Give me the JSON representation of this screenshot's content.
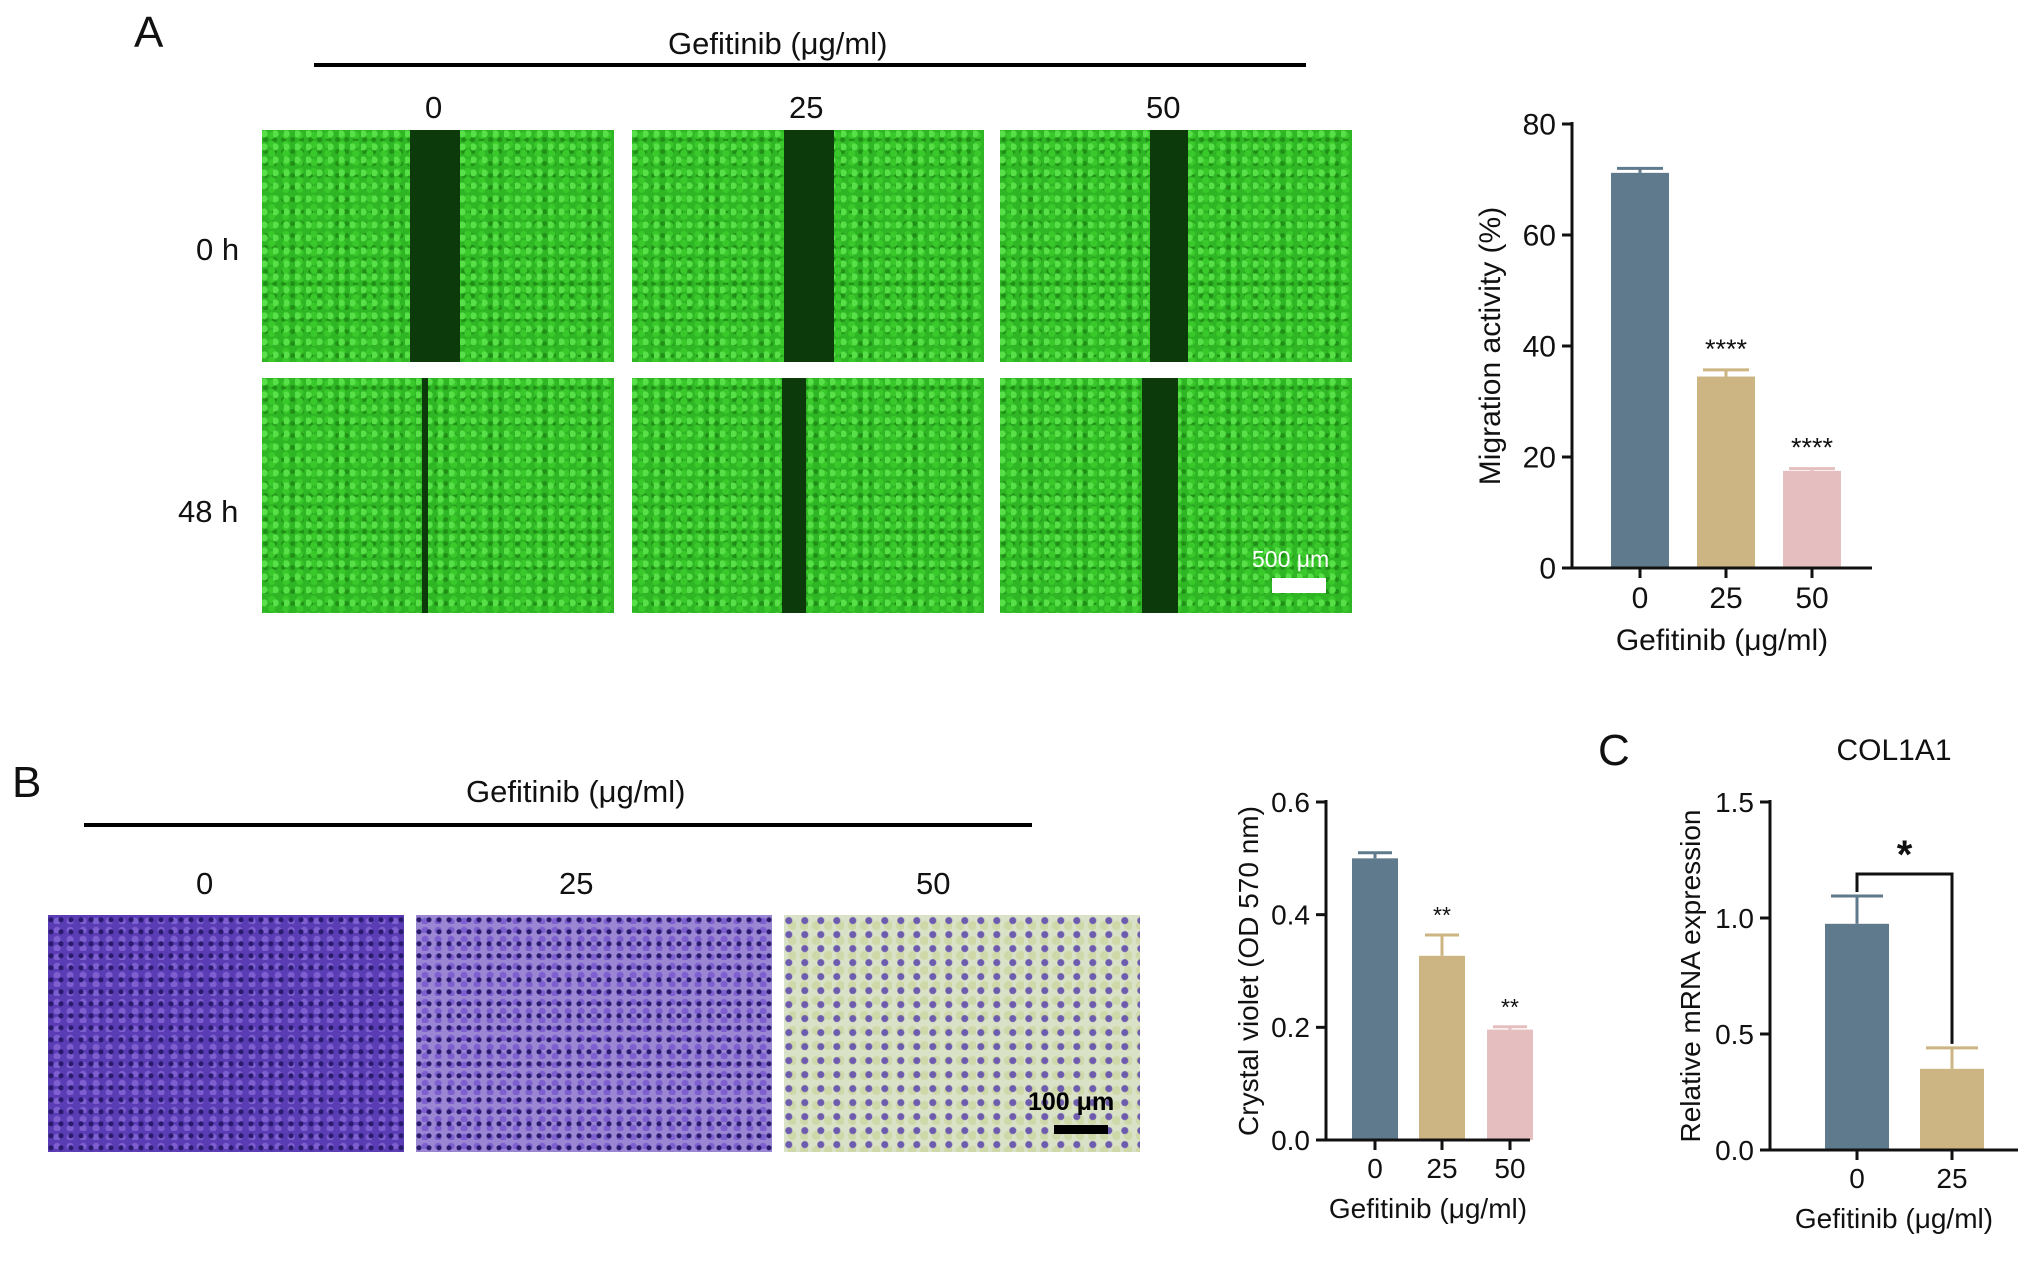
{
  "panels": {
    "a": {
      "letter": "A",
      "treatment_header": "Gefitinib (μg/ml)",
      "columns": [
        "0",
        "25",
        "50"
      ],
      "rows": [
        "0 h",
        "48 h"
      ],
      "scale_bar": "500 μm"
    },
    "b": {
      "letter": "B",
      "treatment_header": "Gefitinib (μg/ml)",
      "columns": [
        "0",
        "25",
        "50"
      ],
      "scale_bar": "100 μm"
    },
    "c": {
      "letter": "C"
    }
  },
  "chart_data": [
    {
      "id": "migration",
      "type": "bar",
      "categories": [
        "0",
        "25",
        "50"
      ],
      "values": [
        71.2,
        34.5,
        17.5
      ],
      "errors": [
        0.8,
        1.2,
        0.4
      ],
      "significance": [
        "",
        "****",
        "****"
      ],
      "xlabel": "Gefitinib (μg/ml)",
      "ylabel": "Migration activity (%)",
      "ylim": [
        0,
        80
      ],
      "yticks": [
        "0",
        "20",
        "40",
        "60",
        "80"
      ],
      "colors": [
        "#5f7a8c",
        "#ccb583",
        "#e5bfbf"
      ]
    },
    {
      "id": "crystal-violet",
      "type": "bar",
      "categories": [
        "0",
        "25",
        "50"
      ],
      "values": [
        0.5,
        0.327,
        0.196
      ],
      "errors": [
        0.01,
        0.037,
        0.005
      ],
      "significance": [
        "",
        "**",
        "**"
      ],
      "xlabel": "Gefitinib (μg/ml)",
      "ylabel": "Crystal violet (OD 570 nm)",
      "ylim": [
        0,
        0.6
      ],
      "yticks": [
        "0.0",
        "0.2",
        "0.4",
        "0.6"
      ],
      "colors": [
        "#5f7a8c",
        "#ccb583",
        "#e5bfbf"
      ]
    },
    {
      "id": "col1a1",
      "type": "bar",
      "title": "COL1A1",
      "categories": [
        "0",
        "25"
      ],
      "values": [
        0.975,
        0.35
      ],
      "errors": [
        0.12,
        0.09
      ],
      "significance_bracket": "*",
      "xlabel": "Gefitinib (μg/ml)",
      "ylabel": "Relative mRNA expression",
      "ylim": [
        0,
        1.5
      ],
      "yticks": [
        "0.0",
        "0.5",
        "1.0",
        "1.5"
      ],
      "colors": [
        "#5f7a8c",
        "#ccb583"
      ]
    }
  ]
}
